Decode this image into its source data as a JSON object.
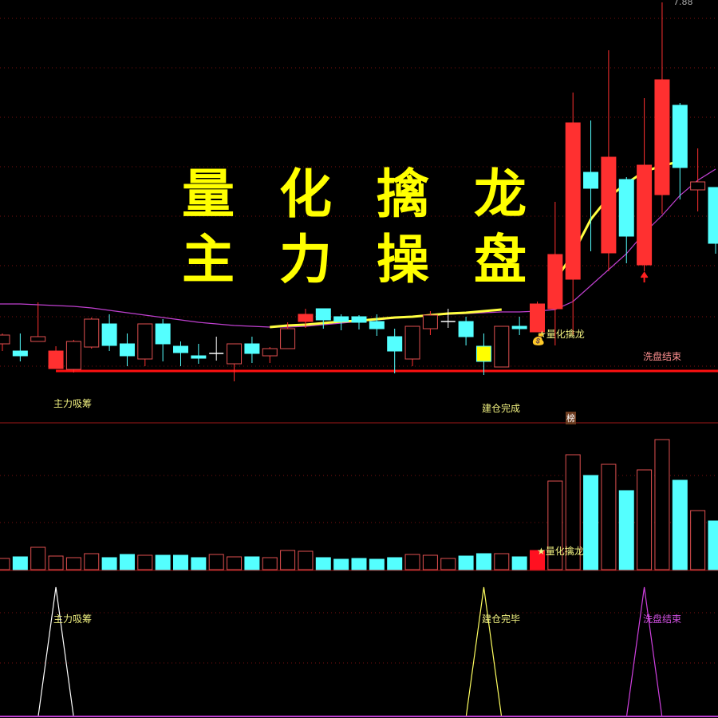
{
  "chart_data": {
    "type": "candlestick",
    "price_high_label": "7.88",
    "grid": true,
    "colors": {
      "up": "#ff3030",
      "down": "#54ffff",
      "doji": "#ffffff",
      "signal": "#ffff00",
      "ma": "#c040d0",
      "ma_fast": "#ffff40",
      "support": "#ff1010",
      "grid": "#7a1010"
    },
    "candles": [
      {
        "o": 3.6,
        "h": 3.73,
        "l": 3.51,
        "c": 3.71,
        "style": "hollow"
      },
      {
        "o": 3.51,
        "h": 3.73,
        "l": 3.38,
        "c": 3.45,
        "style": "cyan"
      },
      {
        "o": 3.63,
        "h": 4.12,
        "l": 3.63,
        "c": 3.69,
        "style": "hollow"
      },
      {
        "o": 3.29,
        "h": 3.57,
        "l": 3.29,
        "c": 3.51,
        "style": "solid"
      },
      {
        "o": 3.28,
        "h": 3.65,
        "l": 3.24,
        "c": 3.63,
        "style": "hollow"
      },
      {
        "o": 3.56,
        "h": 3.93,
        "l": 3.54,
        "c": 3.91,
        "style": "hollow"
      },
      {
        "o": 3.85,
        "h": 3.97,
        "l": 3.51,
        "c": 3.58,
        "style": "cyan"
      },
      {
        "o": 3.6,
        "h": 3.73,
        "l": 3.32,
        "c": 3.45,
        "style": "cyan"
      },
      {
        "o": 3.41,
        "h": 3.85,
        "l": 3.32,
        "c": 3.85,
        "style": "hollow"
      },
      {
        "o": 3.85,
        "h": 3.91,
        "l": 3.38,
        "c": 3.6,
        "style": "cyan"
      },
      {
        "o": 3.57,
        "h": 3.63,
        "l": 3.32,
        "c": 3.49,
        "style": "cyan"
      },
      {
        "o": 3.45,
        "h": 3.6,
        "l": 3.35,
        "c": 3.42,
        "style": "cyan"
      },
      {
        "o": 3.48,
        "h": 3.69,
        "l": 3.39,
        "c": 3.48,
        "style": "doji"
      },
      {
        "o": 3.35,
        "h": 3.6,
        "l": 3.13,
        "c": 3.6,
        "style": "hollow"
      },
      {
        "o": 3.6,
        "h": 3.69,
        "l": 3.36,
        "c": 3.48,
        "style": "cyan"
      },
      {
        "o": 3.45,
        "h": 3.56,
        "l": 3.36,
        "c": 3.54,
        "style": "hollow"
      },
      {
        "o": 3.54,
        "h": 3.87,
        "l": 3.54,
        "c": 3.79,
        "style": "hollow"
      },
      {
        "o": 3.88,
        "h": 4.04,
        "l": 3.8,
        "c": 3.97,
        "style": "solid"
      },
      {
        "o": 4.04,
        "h": 4.04,
        "l": 3.79,
        "c": 3.9,
        "style": "cyan"
      },
      {
        "o": 3.94,
        "h": 3.97,
        "l": 3.77,
        "c": 3.88,
        "style": "cyan"
      },
      {
        "o": 3.94,
        "h": 3.96,
        "l": 3.78,
        "c": 3.87,
        "style": "cyan"
      },
      {
        "o": 3.88,
        "h": 3.97,
        "l": 3.7,
        "c": 3.79,
        "style": "cyan"
      },
      {
        "o": 3.69,
        "h": 3.79,
        "l": 3.23,
        "c": 3.51,
        "style": "cyan"
      },
      {
        "o": 3.41,
        "h": 3.82,
        "l": 3.32,
        "c": 3.82,
        "style": "hollow"
      },
      {
        "o": 3.79,
        "h": 4.01,
        "l": 3.71,
        "c": 3.96,
        "style": "hollow"
      },
      {
        "o": 3.88,
        "h": 4.04,
        "l": 3.8,
        "c": 3.88,
        "style": "doji"
      },
      {
        "o": 3.88,
        "h": 3.94,
        "l": 3.58,
        "c": 3.69,
        "style": "cyan"
      },
      {
        "o": 3.57,
        "h": 3.73,
        "l": 3.21,
        "c": 3.38,
        "style": "yellow"
      },
      {
        "o": 3.31,
        "h": 3.82,
        "l": 3.31,
        "c": 3.82,
        "style": "hollow"
      },
      {
        "o": 3.82,
        "h": 3.94,
        "l": 3.71,
        "c": 3.79,
        "style": "cyan"
      },
      {
        "o": 3.75,
        "h": 4.13,
        "l": 3.75,
        "c": 4.1,
        "style": "solid"
      },
      {
        "o": 4.04,
        "h": 5.38,
        "l": 3.58,
        "c": 4.72,
        "style": "solid"
      },
      {
        "o": 4.41,
        "h": 6.75,
        "l": 3.71,
        "c": 6.37,
        "style": "solid"
      },
      {
        "o": 5.75,
        "h": 6.4,
        "l": 4.76,
        "c": 5.55,
        "style": "cyan"
      },
      {
        "o": 4.74,
        "h": 7.28,
        "l": 4.51,
        "c": 5.94,
        "style": "solid"
      },
      {
        "o": 5.66,
        "h": 5.69,
        "l": 4.61,
        "c": 4.95,
        "style": "cyan"
      },
      {
        "o": 4.59,
        "h": 6.68,
        "l": 4.51,
        "c": 5.84,
        "style": "solid"
      },
      {
        "o": 5.47,
        "h": 7.88,
        "l": 5.23,
        "c": 6.91,
        "style": "solid"
      },
      {
        "o": 6.59,
        "h": 6.62,
        "l": 5.41,
        "c": 5.81,
        "style": "cyan"
      },
      {
        "o": 5.53,
        "h": 6.05,
        "l": 5.26,
        "c": 5.63,
        "style": "hollow"
      },
      {
        "o": 5.56,
        "h": 5.56,
        "l": 4.73,
        "c": 4.86,
        "style": "cyan"
      }
    ],
    "ma": [
      4.1,
      4.1,
      4.09,
      4.08,
      4.07,
      4.05,
      4.02,
      3.99,
      3.96,
      3.93,
      3.9,
      3.87,
      3.85,
      3.83,
      3.82,
      3.81,
      3.81,
      3.82,
      3.84,
      3.86,
      3.88,
      3.9,
      3.92,
      3.94,
      3.96,
      3.97,
      3.98,
      3.99,
      4.0,
      4.0,
      4.01,
      4.03,
      4.13,
      4.33,
      4.53,
      4.73,
      4.99,
      5.21,
      5.46,
      5.65,
      5.79
    ],
    "ma_fast": [
      null,
      null,
      null,
      null,
      null,
      null,
      null,
      null,
      null,
      null,
      null,
      null,
      null,
      null,
      null,
      3.81,
      3.83,
      3.84,
      3.86,
      3.88,
      3.89,
      3.91,
      3.93,
      3.94,
      3.96,
      3.98,
      3.99,
      4.01,
      4.03,
      null,
      null,
      4.39,
      4.73,
      5.16,
      5.44,
      5.61,
      5.76,
      5.83,
      5.89,
      null,
      null
    ],
    "support_level": 3.26,
    "support_start_index": 3,
    "volume": [
      14,
      16,
      28,
      17,
      15,
      20,
      15,
      19,
      18,
      18,
      18,
      15,
      19,
      16,
      16,
      15,
      24,
      23,
      15,
      13,
      14,
      13,
      15,
      19,
      18,
      14,
      17,
      20,
      20,
      16,
      24,
      111,
      144,
      118,
      132,
      99,
      125,
      163,
      112,
      74,
      61
    ],
    "volume_highlight_index": 30,
    "signals": [
      {
        "index": 3,
        "value": 1,
        "color": "#ffffff"
      },
      {
        "index": 27,
        "value": 1,
        "color": "#ffff60"
      },
      {
        "index": 36,
        "value": 1,
        "color": "#d040e0"
      }
    ]
  },
  "overlay": {
    "title_line1": "量化擒龙",
    "title_line2": "主力操盘",
    "price_label": "7.88",
    "main_labels": {
      "accumulate": "主力吸筹",
      "build_done": "建仓完成",
      "signal": "★量化擒龙",
      "wash_end": "洗盘结束",
      "bang": "榜"
    },
    "volume_label": "★量化擒龙",
    "indicator_labels": {
      "accumulate": "主力吸筹",
      "build_done": "建仓完毕",
      "wash_end": "洗盘结束"
    }
  }
}
